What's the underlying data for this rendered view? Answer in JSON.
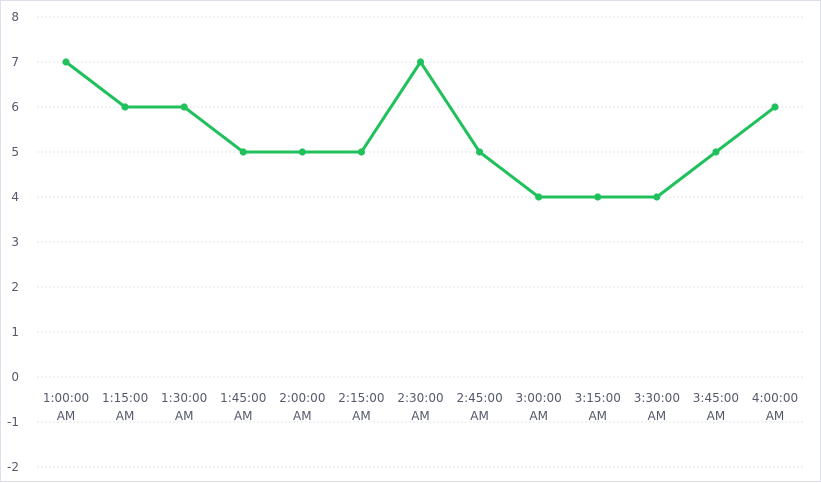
{
  "chart_data": {
    "type": "line",
    "x": [
      "1:00:00 AM",
      "1:15:00 AM",
      "1:30:00 AM",
      "1:45:00 AM",
      "2:00:00 AM",
      "2:15:00 AM",
      "2:30:00 AM",
      "2:45:00 AM",
      "3:00:00 AM",
      "3:15:00 AM",
      "3:30:00 AM",
      "3:45:00 AM",
      "4:00:00 AM"
    ],
    "x_tick_lines": [
      [
        "1:00:00",
        "AM"
      ],
      [
        "1:15:00",
        "AM"
      ],
      [
        "1:30:00",
        "AM"
      ],
      [
        "1:45:00",
        "AM"
      ],
      [
        "2:00:00",
        "AM"
      ],
      [
        "2:15:00",
        "AM"
      ],
      [
        "2:30:00",
        "AM"
      ],
      [
        "2:45:00",
        "AM"
      ],
      [
        "3:00:00",
        "AM"
      ],
      [
        "3:15:00",
        "AM"
      ],
      [
        "3:30:00",
        "AM"
      ],
      [
        "3:45:00",
        "AM"
      ],
      [
        "4:00:00",
        "AM"
      ]
    ],
    "series": [
      {
        "values": [
          7,
          6,
          6,
          5,
          5,
          5,
          7,
          5,
          4,
          4,
          4,
          5,
          6
        ],
        "color": "#20c05c"
      }
    ],
    "y_ticks": [
      "-2",
      "-1",
      "0",
      "1",
      "2",
      "3",
      "4",
      "5",
      "6",
      "7",
      "8"
    ],
    "ylim": [
      -2,
      8
    ],
    "title": "",
    "xlabel": "",
    "ylabel": "",
    "grid": true,
    "legend": "none"
  }
}
